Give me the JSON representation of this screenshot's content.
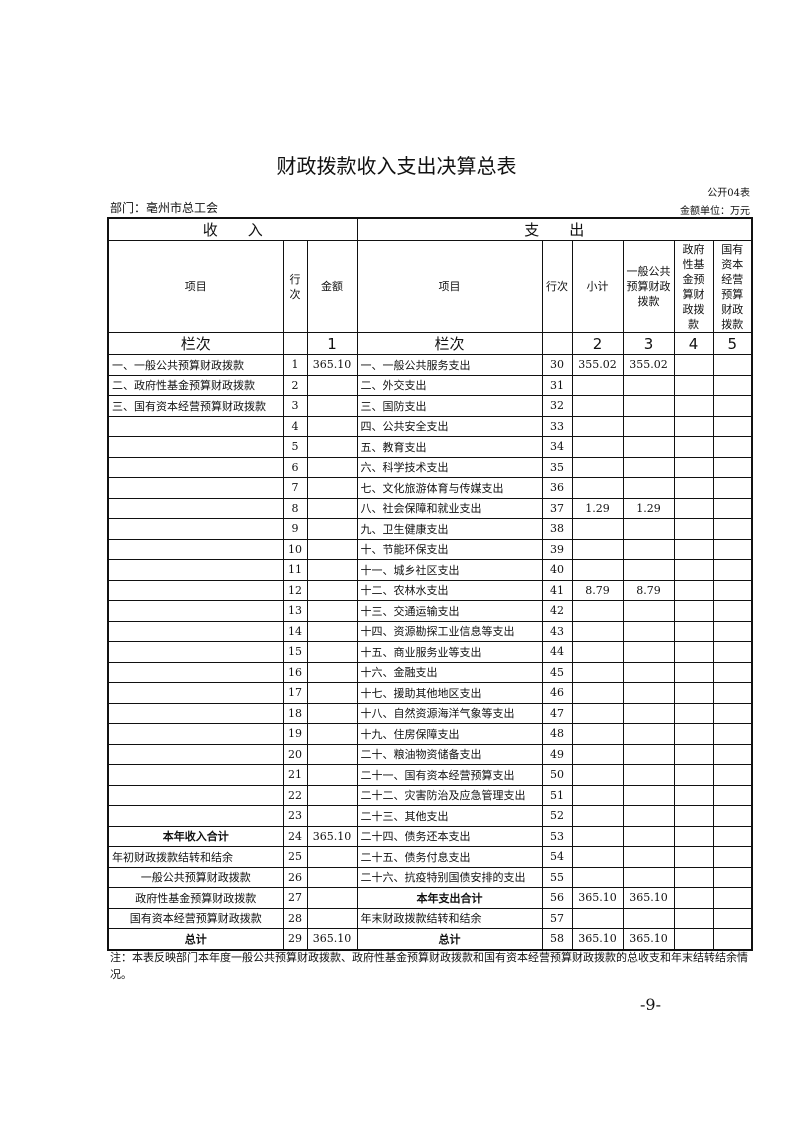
{
  "title": "财政拨款收入支出决算总表",
  "form_no": "公开04表",
  "department": "部门：亳州市总工会",
  "unit": "金额单位：万元",
  "section_income": "收　　入",
  "section_expense": "支　　出",
  "headers": {
    "item": "项目",
    "row": "行次",
    "amount": "金额",
    "item2": "项目",
    "row2": "行次",
    "subtotal": "小计",
    "general": "一般公共预算财政拨款",
    "fund": "政府性基金预算财政拨款",
    "state": "国有资本经营预算财政拨款"
  },
  "lanci": {
    "label": "栏次",
    "c1": "1",
    "label2": "栏次",
    "c2": "2",
    "c3": "3",
    "c4": "4",
    "c5": "5"
  },
  "rows": [
    {
      "in_item": "一、一般公共预算财政拨款",
      "in_row": "1",
      "in_amt": "365.10",
      "out_item": "一、一般公共服务支出",
      "out_row": "30",
      "sub": "355.02",
      "gen": "355.02",
      "fund": "",
      "state": ""
    },
    {
      "in_item": "二、政府性基金预算财政拨款",
      "in_row": "2",
      "in_amt": "",
      "out_item": "二、外交支出",
      "out_row": "31",
      "sub": "",
      "gen": "",
      "fund": "",
      "state": ""
    },
    {
      "in_item": "三、国有资本经营预算财政拨款",
      "in_row": "3",
      "in_amt": "",
      "out_item": "三、国防支出",
      "out_row": "32",
      "sub": "",
      "gen": "",
      "fund": "",
      "state": ""
    },
    {
      "in_item": "",
      "in_row": "4",
      "in_amt": "",
      "out_item": "四、公共安全支出",
      "out_row": "33",
      "sub": "",
      "gen": "",
      "fund": "",
      "state": ""
    },
    {
      "in_item": "",
      "in_row": "5",
      "in_amt": "",
      "out_item": "五、教育支出",
      "out_row": "34",
      "sub": "",
      "gen": "",
      "fund": "",
      "state": ""
    },
    {
      "in_item": "",
      "in_row": "6",
      "in_amt": "",
      "out_item": "六、科学技术支出",
      "out_row": "35",
      "sub": "",
      "gen": "",
      "fund": "",
      "state": ""
    },
    {
      "in_item": "",
      "in_row": "7",
      "in_amt": "",
      "out_item": "七、文化旅游体育与传媒支出",
      "out_row": "36",
      "sub": "",
      "gen": "",
      "fund": "",
      "state": ""
    },
    {
      "in_item": "",
      "in_row": "8",
      "in_amt": "",
      "out_item": "八、社会保障和就业支出",
      "out_row": "37",
      "sub": "1.29",
      "gen": "1.29",
      "fund": "",
      "state": ""
    },
    {
      "in_item": "",
      "in_row": "9",
      "in_amt": "",
      "out_item": "九、卫生健康支出",
      "out_row": "38",
      "sub": "",
      "gen": "",
      "fund": "",
      "state": ""
    },
    {
      "in_item": "",
      "in_row": "10",
      "in_amt": "",
      "out_item": "十、节能环保支出",
      "out_row": "39",
      "sub": "",
      "gen": "",
      "fund": "",
      "state": ""
    },
    {
      "in_item": "",
      "in_row": "11",
      "in_amt": "",
      "out_item": "十一、城乡社区支出",
      "out_row": "40",
      "sub": "",
      "gen": "",
      "fund": "",
      "state": ""
    },
    {
      "in_item": "",
      "in_row": "12",
      "in_amt": "",
      "out_item": "十二、农林水支出",
      "out_row": "41",
      "sub": "8.79",
      "gen": "8.79",
      "fund": "",
      "state": ""
    },
    {
      "in_item": "",
      "in_row": "13",
      "in_amt": "",
      "out_item": "十三、交通运输支出",
      "out_row": "42",
      "sub": "",
      "gen": "",
      "fund": "",
      "state": ""
    },
    {
      "in_item": "",
      "in_row": "14",
      "in_amt": "",
      "out_item": "十四、资源勘探工业信息等支出",
      "out_row": "43",
      "sub": "",
      "gen": "",
      "fund": "",
      "state": ""
    },
    {
      "in_item": "",
      "in_row": "15",
      "in_amt": "",
      "out_item": "十五、商业服务业等支出",
      "out_row": "44",
      "sub": "",
      "gen": "",
      "fund": "",
      "state": ""
    },
    {
      "in_item": "",
      "in_row": "16",
      "in_amt": "",
      "out_item": "十六、金融支出",
      "out_row": "45",
      "sub": "",
      "gen": "",
      "fund": "",
      "state": ""
    },
    {
      "in_item": "",
      "in_row": "17",
      "in_amt": "",
      "out_item": "十七、援助其他地区支出",
      "out_row": "46",
      "sub": "",
      "gen": "",
      "fund": "",
      "state": ""
    },
    {
      "in_item": "",
      "in_row": "18",
      "in_amt": "",
      "out_item": "十八、自然资源海洋气象等支出",
      "out_row": "47",
      "sub": "",
      "gen": "",
      "fund": "",
      "state": ""
    },
    {
      "in_item": "",
      "in_row": "19",
      "in_amt": "",
      "out_item": "十九、住房保障支出",
      "out_row": "48",
      "sub": "",
      "gen": "",
      "fund": "",
      "state": ""
    },
    {
      "in_item": "",
      "in_row": "20",
      "in_amt": "",
      "out_item": "二十、粮油物资储备支出",
      "out_row": "49",
      "sub": "",
      "gen": "",
      "fund": "",
      "state": ""
    },
    {
      "in_item": "",
      "in_row": "21",
      "in_amt": "",
      "out_item": "二十一、国有资本经营预算支出",
      "out_row": "50",
      "sub": "",
      "gen": "",
      "fund": "",
      "state": ""
    },
    {
      "in_item": "",
      "in_row": "22",
      "in_amt": "",
      "out_item": "二十二、灾害防治及应急管理支出",
      "out_row": "51",
      "sub": "",
      "gen": "",
      "fund": "",
      "state": ""
    },
    {
      "in_item": "",
      "in_row": "23",
      "in_amt": "",
      "out_item": "二十三、其他支出",
      "out_row": "52",
      "sub": "",
      "gen": "",
      "fund": "",
      "state": ""
    },
    {
      "in_item": "本年收入合计",
      "in_row": "24",
      "in_amt": "365.10",
      "out_item": "二十四、债务还本支出",
      "out_row": "53",
      "sub": "",
      "gen": "",
      "fund": "",
      "state": ""
    },
    {
      "in_item": "年初财政拨款结转和结余",
      "in_row": "25",
      "in_amt": "",
      "out_item": "二十五、债务付息支出",
      "out_row": "54",
      "sub": "",
      "gen": "",
      "fund": "",
      "state": ""
    },
    {
      "in_item": "一般公共预算财政拨款",
      "in_row": "26",
      "in_amt": "",
      "out_item": "二十六、抗疫特别国债安排的支出",
      "out_row": "55",
      "sub": "",
      "gen": "",
      "fund": "",
      "state": ""
    },
    {
      "in_item": "政府性基金预算财政拨款",
      "in_row": "27",
      "in_amt": "",
      "out_item": "本年支出合计",
      "out_row": "56",
      "sub": "365.10",
      "gen": "365.10",
      "fund": "",
      "state": ""
    },
    {
      "in_item": "国有资本经营预算财政拨款",
      "in_row": "28",
      "in_amt": "",
      "out_item": "年末财政拨款结转和结余",
      "out_row": "57",
      "sub": "",
      "gen": "",
      "fund": "",
      "state": ""
    },
    {
      "in_item": "总计",
      "in_row": "29",
      "in_amt": "365.10",
      "out_item": "总计",
      "out_row": "58",
      "sub": "365.10",
      "gen": "365.10",
      "fund": "",
      "state": ""
    }
  ],
  "note": "注：本表反映部门本年度一般公共预算财政拨款、政府性基金预算财政拨款和国有资本经营预算财政拨款的总收支和年末结转结余情况。",
  "page_number": "-9-"
}
